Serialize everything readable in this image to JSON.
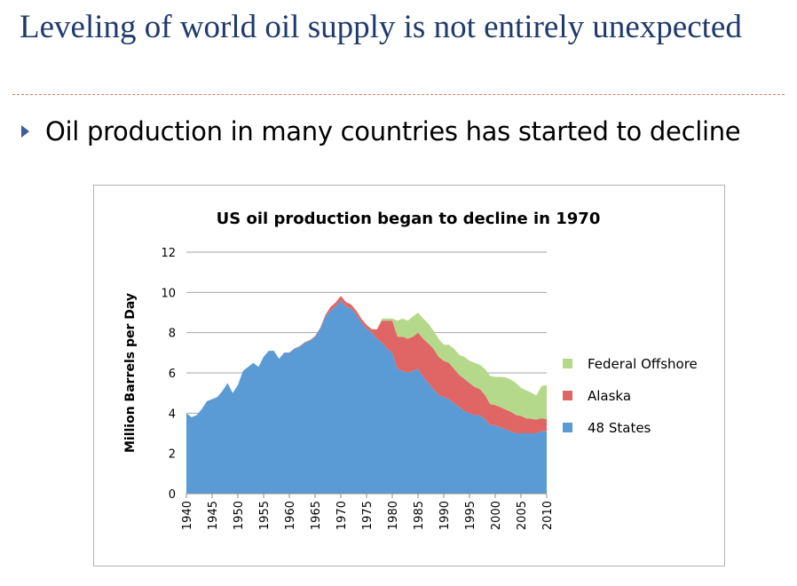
{
  "slide": {
    "title": "Leveling of world oil supply is not entirely unexpected",
    "bullet": "Oil production in many countries has started to decline"
  },
  "chart_data": {
    "type": "area",
    "stacked": true,
    "title": "US oil production began to decline in 1970",
    "xlabel": "",
    "ylabel": "Million Barrels per Day",
    "ylim": [
      0,
      12
    ],
    "xlim": [
      1940,
      2010
    ],
    "yticks": [
      0,
      2,
      4,
      6,
      8,
      10,
      12
    ],
    "xticks": [
      1940,
      1945,
      1950,
      1955,
      1960,
      1965,
      1970,
      1975,
      1980,
      1985,
      1990,
      1995,
      2000,
      2005,
      2010
    ],
    "grid": true,
    "legend_position": "right",
    "x": [
      1940,
      1941,
      1942,
      1943,
      1944,
      1945,
      1946,
      1947,
      1948,
      1949,
      1950,
      1951,
      1952,
      1953,
      1954,
      1955,
      1956,
      1957,
      1958,
      1959,
      1960,
      1961,
      1962,
      1963,
      1964,
      1965,
      1966,
      1967,
      1968,
      1969,
      1970,
      1971,
      1972,
      1973,
      1974,
      1975,
      1976,
      1977,
      1978,
      1979,
      1980,
      1981,
      1982,
      1983,
      1984,
      1985,
      1986,
      1987,
      1988,
      1989,
      1990,
      1991,
      1992,
      1993,
      1994,
      1995,
      1996,
      1997,
      1998,
      1999,
      2000,
      2001,
      2002,
      2003,
      2004,
      2005,
      2006,
      2007,
      2008,
      2009,
      2010
    ],
    "series": [
      {
        "name": "48 States",
        "color": "#5b9bd5",
        "values": [
          4.0,
          3.8,
          3.9,
          4.2,
          4.6,
          4.7,
          4.8,
          5.1,
          5.5,
          5.0,
          5.4,
          6.1,
          6.3,
          6.5,
          6.3,
          6.8,
          7.1,
          7.1,
          6.7,
          7.0,
          7.0,
          7.2,
          7.3,
          7.5,
          7.6,
          7.8,
          8.2,
          8.8,
          9.1,
          9.3,
          9.6,
          9.3,
          9.2,
          8.9,
          8.5,
          8.2,
          8.0,
          7.7,
          7.5,
          7.2,
          7.0,
          6.2,
          6.1,
          6.0,
          6.1,
          6.2,
          5.8,
          5.5,
          5.2,
          4.9,
          4.8,
          4.7,
          4.5,
          4.3,
          4.1,
          4.0,
          3.9,
          3.9,
          3.7,
          3.4,
          3.4,
          3.3,
          3.2,
          3.1,
          3.0,
          3.0,
          3.0,
          3.0,
          3.0,
          3.1,
          3.1
        ]
      },
      {
        "name": "Alaska",
        "color": "#e06666",
        "values": [
          0,
          0,
          0,
          0,
          0,
          0,
          0,
          0,
          0,
          0,
          0,
          0,
          0,
          0,
          0,
          0,
          0,
          0,
          0,
          0.01,
          0.02,
          0.02,
          0.03,
          0.03,
          0.03,
          0.03,
          0.04,
          0.08,
          0.18,
          0.2,
          0.23,
          0.22,
          0.2,
          0.2,
          0.19,
          0.19,
          0.17,
          0.46,
          1.1,
          1.4,
          1.6,
          1.6,
          1.7,
          1.7,
          1.7,
          1.8,
          1.9,
          1.96,
          2.0,
          1.9,
          1.8,
          1.8,
          1.7,
          1.6,
          1.6,
          1.5,
          1.4,
          1.3,
          1.2,
          1.05,
          1.0,
          1.0,
          0.98,
          0.97,
          0.91,
          0.86,
          0.74,
          0.72,
          0.68,
          0.65,
          0.6
        ]
      },
      {
        "name": "Federal Offshore",
        "color": "#b5d98a",
        "values": [
          0,
          0,
          0,
          0,
          0,
          0,
          0,
          0,
          0,
          0,
          0,
          0,
          0,
          0,
          0,
          0,
          0,
          0,
          0,
          0,
          0,
          0,
          0,
          0,
          0,
          0,
          0,
          0,
          0,
          0,
          0,
          0,
          0,
          0,
          0,
          0,
          0,
          0,
          0.1,
          0.1,
          0.1,
          0.8,
          0.9,
          0.9,
          1.0,
          1.0,
          1.0,
          1.0,
          0.9,
          0.9,
          0.8,
          0.9,
          1.0,
          1.0,
          1.1,
          1.1,
          1.2,
          1.2,
          1.3,
          1.4,
          1.4,
          1.5,
          1.6,
          1.6,
          1.6,
          1.4,
          1.4,
          1.3,
          1.2,
          1.6,
          1.7
        ]
      }
    ]
  }
}
